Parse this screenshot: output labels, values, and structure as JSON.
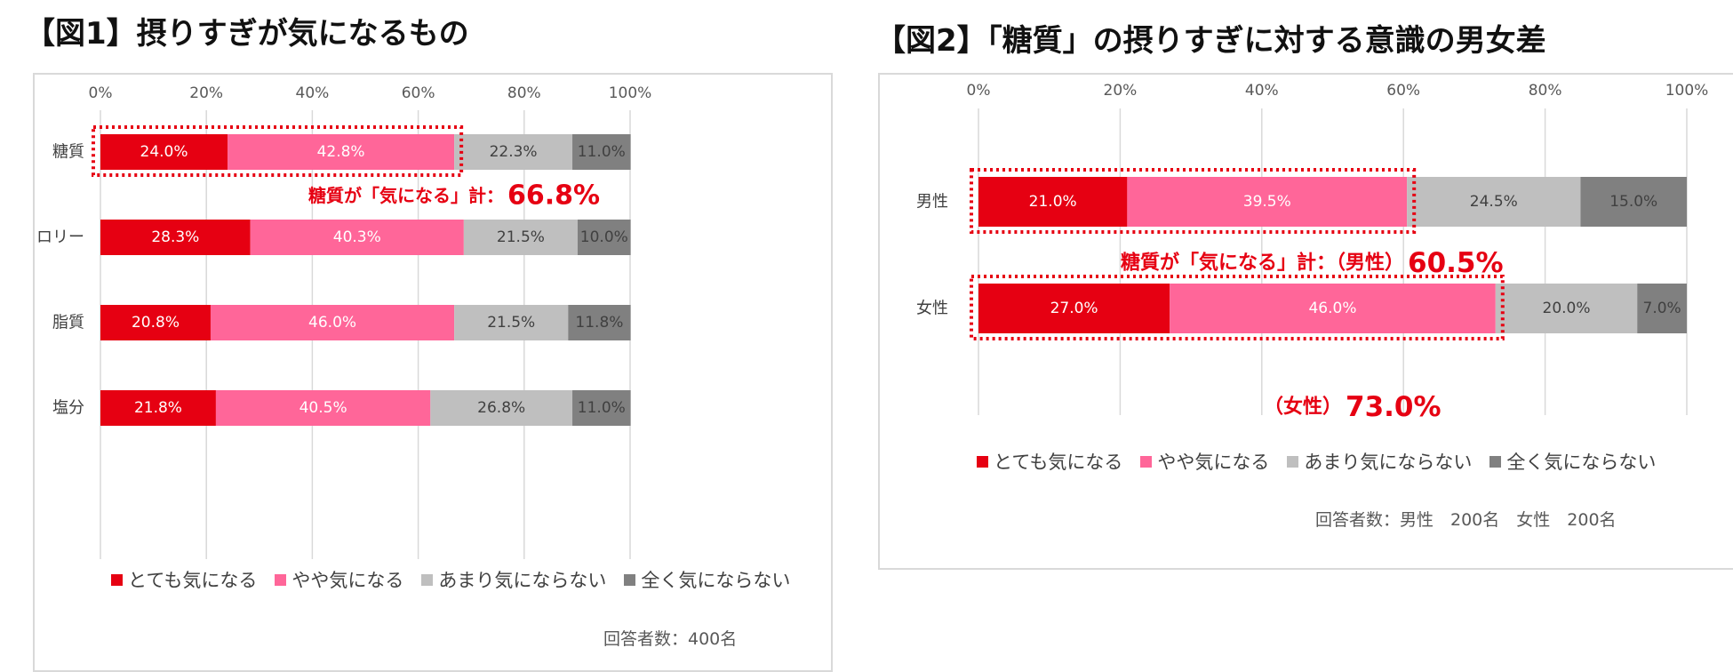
{
  "titles": {
    "fig1": "【図1】摂りすぎが気になるもの",
    "fig2": "【図2】「糖質」の摂りすぎに対する意識の男女差"
  },
  "legend": [
    {
      "label": "とても気になる",
      "color": "#e60012"
    },
    {
      "label": "やや気になる",
      "color": "#ff6699"
    },
    {
      "label": "あまり気にならない",
      "color": "#bfbfbf"
    },
    {
      "label": "全く気にならない",
      "color": "#808080"
    }
  ],
  "chart_data": [
    {
      "type": "bar",
      "orientation": "horizontal",
      "stacked": true,
      "title": "【図1】摂りすぎが気になるもの",
      "categories": [
        "糖質",
        "カロリー",
        "脂質",
        "塩分"
      ],
      "x_ticks": [
        "0%",
        "20%",
        "40%",
        "60%",
        "80%",
        "100%"
      ],
      "xlim": [
        0,
        100
      ],
      "grid": true,
      "legend_position": "bottom",
      "series": [
        {
          "name": "とても気になる",
          "values": [
            24.0,
            28.3,
            20.8,
            21.8
          ],
          "labels": [
            "24.0%",
            "28.3%",
            "20.8%",
            "21.8%"
          ]
        },
        {
          "name": "やや気になる",
          "values": [
            42.8,
            40.3,
            46.0,
            40.5
          ],
          "labels": [
            "42.8%",
            "40.3%",
            "46.0%",
            "40.5%"
          ]
        },
        {
          "name": "あまり気にならない",
          "values": [
            22.3,
            21.5,
            21.5,
            26.8
          ],
          "labels": [
            "22.3%",
            "21.5%",
            "21.5%",
            "26.8%"
          ]
        },
        {
          "name": "全く気にならない",
          "values": [
            11.0,
            10.0,
            11.8,
            11.0
          ],
          "labels": [
            "11.0%",
            "10.0%",
            "11.8%",
            "11.0%"
          ]
        }
      ],
      "annotations": [
        {
          "text": "糖質が「気になる」計：",
          "value_text": "66.8%",
          "category": "糖質",
          "span": [
            0,
            66.8
          ]
        }
      ],
      "respondents": "回答者数：400名"
    },
    {
      "type": "bar",
      "orientation": "horizontal",
      "stacked": true,
      "title": "【図2】「糖質」の摂りすぎに対する意識の男女差",
      "categories": [
        "男性",
        "女性"
      ],
      "x_ticks": [
        "0%",
        "20%",
        "40%",
        "60%",
        "80%",
        "100%"
      ],
      "xlim": [
        0,
        100
      ],
      "grid": true,
      "legend_position": "bottom",
      "series": [
        {
          "name": "とても気になる",
          "values": [
            21.0,
            27.0
          ],
          "labels": [
            "21.0%",
            "27.0%"
          ]
        },
        {
          "name": "やや気になる",
          "values": [
            39.5,
            46.0
          ],
          "labels": [
            "39.5%",
            "46.0%"
          ]
        },
        {
          "name": "あまり気にならない",
          "values": [
            24.5,
            20.0
          ],
          "labels": [
            "24.5%",
            "20.0%"
          ]
        },
        {
          "name": "全く気にならない",
          "values": [
            15.0,
            7.0
          ],
          "labels": [
            "15.0%",
            "7.0%"
          ]
        }
      ],
      "annotations": [
        {
          "text": "糖質が「気になる」計：（男性）",
          "value_text": "60.5%",
          "category": "男性",
          "span": [
            0,
            60.5
          ]
        },
        {
          "text": "（女性）",
          "value_text": "73.0%",
          "category": "女性",
          "span": [
            0,
            73.0
          ]
        }
      ],
      "respondents": "回答者数：男性　200名　女性　200名"
    }
  ]
}
